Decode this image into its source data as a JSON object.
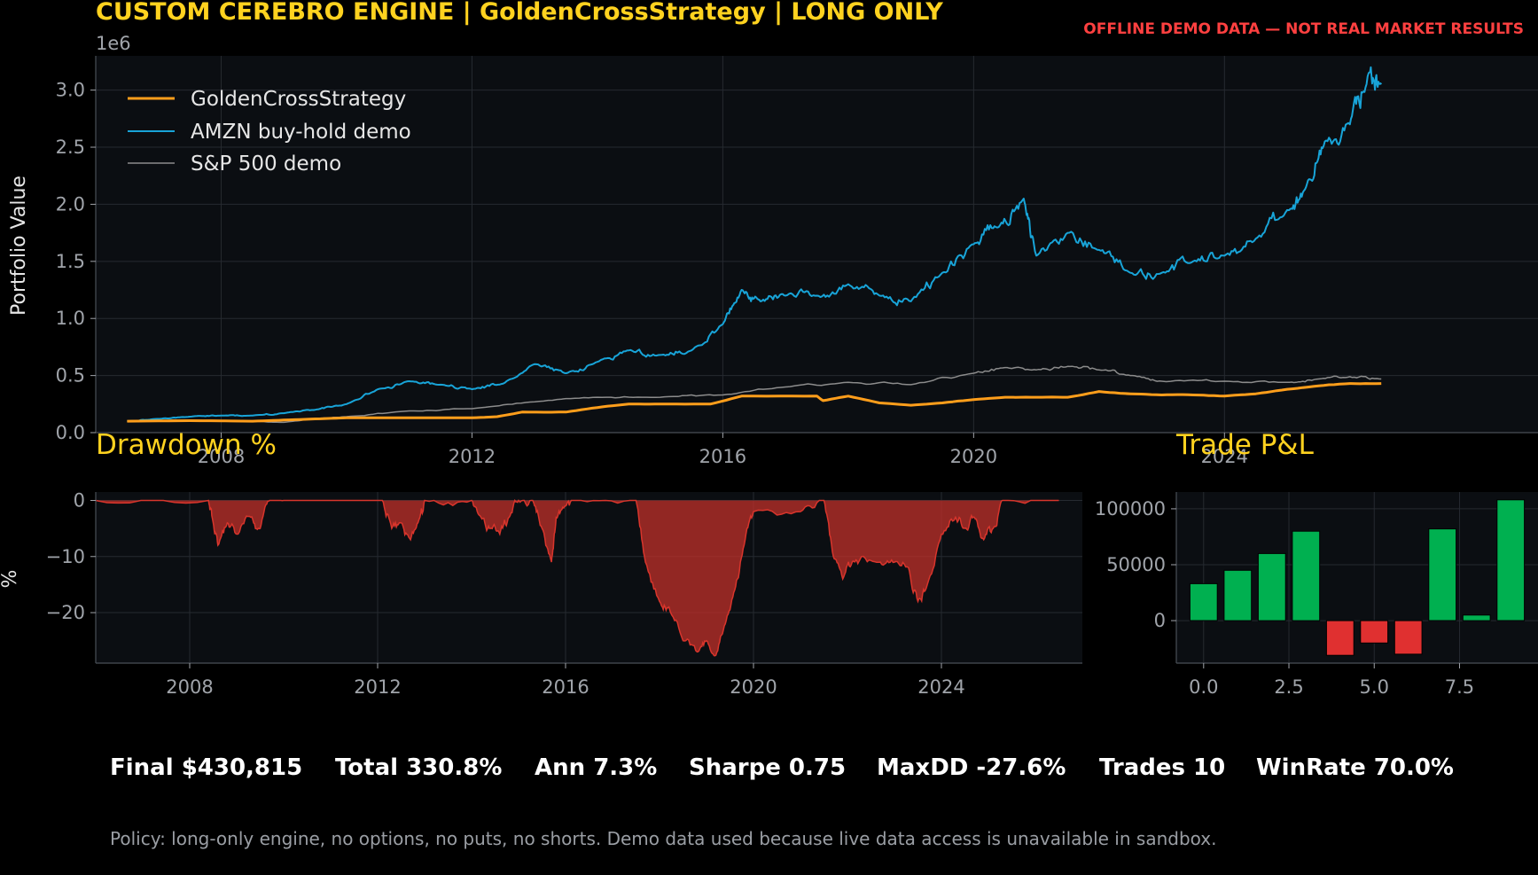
{
  "header": {
    "title": "CUSTOM CEREBRO ENGINE | GoldenCrossStrategy | LONG ONLY",
    "warning": "OFFLINE DEMO DATA — NOT REAL MARKET RESULTS"
  },
  "colors": {
    "title": "#ffd21f",
    "warning": "#ff4040",
    "strategy": "#ff9e1b",
    "amzn": "#18a4d8",
    "sp500": "#8c8c8c",
    "drawdown": "#c0302a",
    "win": "#00b050",
    "loss": "#e03030",
    "panel": "#0b0e12",
    "grid": "#262a30"
  },
  "stats": {
    "final": "Final $430,815",
    "total": "Total 330.8%",
    "ann": "Ann 7.3%",
    "sharpe": "Sharpe 0.75",
    "maxdd": "MaxDD -27.6%",
    "trades": "Trades 10",
    "winrate": "WinRate 70.0%"
  },
  "policy": "Policy: long-only engine, no options, no puts, no shorts. Demo data used because live data access is unavailable in sandbox.",
  "chart_data": [
    {
      "type": "line",
      "title": "",
      "xlabel": "",
      "ylabel": "Portfolio Value",
      "y_offset_label": "1e6",
      "xlim": [
        2006.0,
        2029.0
      ],
      "ylim": [
        0,
        3.3
      ],
      "xticks": [
        2008,
        2012,
        2016,
        2020,
        2024
      ],
      "yticks": [
        0.0,
        0.5,
        1.0,
        1.5,
        2.0,
        2.5,
        3.0
      ],
      "grid": true,
      "legend_position": "top-left",
      "series": [
        {
          "name": "GoldenCrossStrategy",
          "x": [
            2006.5,
            2007.5,
            2008.5,
            2009.0,
            2009.5,
            2010.0,
            2011.0,
            2012.0,
            2012.4,
            2012.8,
            2013.5,
            2014.0,
            2014.5,
            2015.0,
            2015.8,
            2016.3,
            2017.5,
            2017.6,
            2018.0,
            2018.5,
            2019.0,
            2019.5,
            2020.0,
            2020.5,
            2021.0,
            2021.5,
            2022.0,
            2022.5,
            2023.0,
            2023.5,
            2024.0,
            2024.5,
            2025.0,
            2025.5,
            2026.0,
            2026.5
          ],
          "values": [
            0.1,
            0.105,
            0.1,
            0.11,
            0.12,
            0.13,
            0.13,
            0.13,
            0.14,
            0.18,
            0.18,
            0.22,
            0.25,
            0.25,
            0.25,
            0.32,
            0.32,
            0.28,
            0.32,
            0.26,
            0.24,
            0.26,
            0.29,
            0.31,
            0.31,
            0.31,
            0.36,
            0.34,
            0.33,
            0.33,
            0.32,
            0.34,
            0.38,
            0.41,
            0.43,
            0.43
          ]
        },
        {
          "name": "AMZN buy-hold demo",
          "x": [
            2006.5,
            2007.0,
            2007.5,
            2008.0,
            2008.5,
            2009.0,
            2009.5,
            2010.0,
            2010.5,
            2011.0,
            2011.5,
            2012.0,
            2012.5,
            2013.0,
            2013.5,
            2014.0,
            2014.5,
            2015.0,
            2015.5,
            2016.0,
            2016.3,
            2016.6,
            2017.0,
            2017.5,
            2018.0,
            2018.5,
            2019.0,
            2019.5,
            2020.0,
            2020.4,
            2020.8,
            2021.0,
            2021.5,
            2022.0,
            2022.5,
            2023.0,
            2023.5,
            2024.0,
            2024.5,
            2025.0,
            2025.3,
            2025.6,
            2026.0,
            2026.3,
            2026.5
          ],
          "values": [
            0.1,
            0.12,
            0.14,
            0.15,
            0.15,
            0.17,
            0.2,
            0.25,
            0.38,
            0.45,
            0.42,
            0.38,
            0.43,
            0.6,
            0.52,
            0.62,
            0.72,
            0.68,
            0.72,
            0.95,
            1.25,
            1.15,
            1.2,
            1.2,
            1.3,
            1.2,
            1.15,
            1.4,
            1.65,
            1.8,
            2.05,
            1.55,
            1.75,
            1.6,
            1.4,
            1.4,
            1.5,
            1.55,
            1.7,
            1.95,
            2.15,
            2.55,
            2.7,
            3.15,
            3.05
          ]
        },
        {
          "name": "S&P 500 demo",
          "x": [
            2006.5,
            2007.5,
            2008.5,
            2009.0,
            2009.5,
            2010.0,
            2011.0,
            2012.0,
            2013.0,
            2014.0,
            2015.0,
            2016.0,
            2017.0,
            2018.0,
            2019.0,
            2020.0,
            2020.5,
            2021.0,
            2021.5,
            2022.0,
            2022.5,
            2023.0,
            2024.0,
            2025.0,
            2025.5,
            2026.0,
            2026.5
          ],
          "values": [
            0.1,
            0.11,
            0.1,
            0.09,
            0.12,
            0.14,
            0.19,
            0.21,
            0.27,
            0.31,
            0.31,
            0.33,
            0.4,
            0.44,
            0.42,
            0.52,
            0.57,
            0.55,
            0.58,
            0.55,
            0.5,
            0.45,
            0.45,
            0.44,
            0.47,
            0.49,
            0.47
          ]
        }
      ]
    },
    {
      "type": "area",
      "title": "Drawdown %",
      "xlabel": "",
      "ylabel": "%",
      "xlim": [
        2006.0,
        2027.0
      ],
      "ylim": [
        -29,
        1.5
      ],
      "xticks": [
        2008,
        2012,
        2016,
        2020,
        2024
      ],
      "yticks": [
        0,
        -10,
        -20
      ],
      "grid": true,
      "series": [
        {
          "name": "",
          "x": [
            2006.0,
            2008.4,
            2008.5,
            2008.6,
            2008.8,
            2009.0,
            2009.3,
            2009.5,
            2009.7,
            2010.0,
            2012.1,
            2012.3,
            2012.5,
            2012.7,
            2012.9,
            2013.0,
            2014.0,
            2014.2,
            2014.4,
            2014.6,
            2014.8,
            2015.0,
            2015.3,
            2015.5,
            2015.7,
            2015.8,
            2016.0,
            2016.2,
            2017.5,
            2017.7,
            2018.0,
            2018.2,
            2018.5,
            2018.8,
            2019.0,
            2019.2,
            2019.4,
            2019.6,
            2019.8,
            2020.0,
            2021.0,
            2021.5,
            2021.7,
            2021.9,
            2022.1,
            2022.3,
            2022.7,
            2023.0,
            2023.3,
            2023.5,
            2023.7,
            2024.0,
            2024.3,
            2024.5,
            2024.7,
            2024.9,
            2025.1,
            2025.3,
            2026.5
          ],
          "values": [
            0,
            0,
            -4,
            -8,
            -4,
            -6,
            -3,
            -5,
            0,
            0,
            0,
            -5,
            -4,
            -7,
            -3,
            0,
            0,
            -3,
            -5,
            -6,
            -3,
            0,
            0,
            -5,
            -11,
            -3,
            -1,
            0,
            0,
            -11,
            -18,
            -19,
            -25,
            -27,
            -25,
            -27.6,
            -22,
            -16,
            -8,
            -2,
            -2,
            0,
            -10,
            -14,
            -11,
            -10,
            -11,
            -11,
            -12,
            -18,
            -15,
            -6,
            -3,
            -5,
            -3,
            -7,
            -5,
            0,
            0
          ]
        }
      ]
    },
    {
      "type": "bar",
      "title": "Trade P&L",
      "xlabel": "",
      "ylabel": "",
      "xlim": [
        -0.8,
        9.8
      ],
      "ylim": [
        -38000,
        115000
      ],
      "xticks": [
        0.0,
        2.5,
        5.0,
        7.5
      ],
      "yticks": [
        0,
        50000,
        100000
      ],
      "grid": true,
      "categories": [
        0,
        1,
        2,
        3,
        4,
        5,
        6,
        7,
        8,
        9
      ],
      "values": [
        33000,
        45000,
        60000,
        80000,
        -31000,
        -20000,
        -30000,
        82000,
        5000,
        108000
      ]
    }
  ]
}
